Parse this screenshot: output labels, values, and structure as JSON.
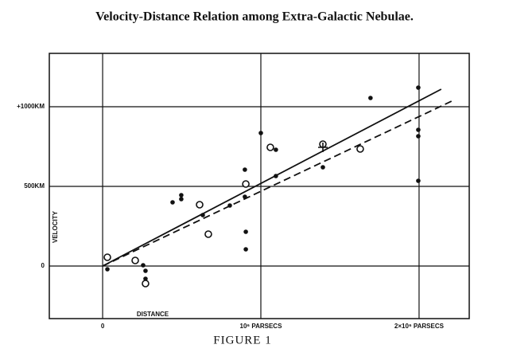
{
  "chart_data": {
    "type": "scatter",
    "title": "Velocity-Distance Relation among Extra-Galactic Nebulae.",
    "caption": "FIGURE 1",
    "xlabel": "DISTANCE",
    "ylabel": "VELOCITY",
    "xlim": [
      -337000,
      2317000
    ],
    "ylim": [
      -330,
      1335
    ],
    "xticks": [
      0,
      {
        "value": 1000000,
        "label": "10⁶ PARSECS"
      },
      {
        "value": 2000000,
        "label": "2×10⁶ PARSECS"
      }
    ],
    "yticks": [
      0,
      {
        "value": 500,
        "label": "500KM"
      },
      {
        "value": 1000,
        "label": "+1000KM"
      }
    ],
    "grid": true,
    "series": [
      {
        "marker": "filled",
        "color": "#111111",
        "x": [
          30000,
          206000,
          256000,
          271000,
          271000,
          442000,
          497000,
          497000,
          633000,
          804000,
          899000,
          899000,
          905000,
          905000,
          1000000,
          1095000,
          1095000,
          1392000,
          1693000,
          1995000,
          1995000,
          1995000,
          1995000
        ],
        "values": [
          -20,
          40,
          5,
          -30,
          -80,
          400,
          445,
          420,
          320,
          380,
          605,
          435,
          215,
          105,
          835,
          730,
          565,
          620,
          1055,
          1120,
          855,
          815,
          535
        ]
      },
      {
        "marker": "open",
        "color": "#111111",
        "x": [
          30000,
          206000,
          271000,
          613000,
          668000,
          905000,
          1060000,
          1392000,
          1628000
        ],
        "values": [
          55,
          35,
          -110,
          385,
          200,
          515,
          745,
          765,
          735
        ]
      },
      {
        "marker": "cross",
        "color": "#111111",
        "x": [
          1392000
        ],
        "values": [
          745
        ]
      }
    ],
    "lines": [
      {
        "style": "solid",
        "color": "#111111",
        "x": [
          0,
          2140000
        ],
        "y": [
          0,
          1110
        ]
      },
      {
        "style": "dashed",
        "color": "#111111",
        "x": [
          0,
          2206000
        ],
        "y": [
          0,
          1035
        ]
      }
    ]
  }
}
